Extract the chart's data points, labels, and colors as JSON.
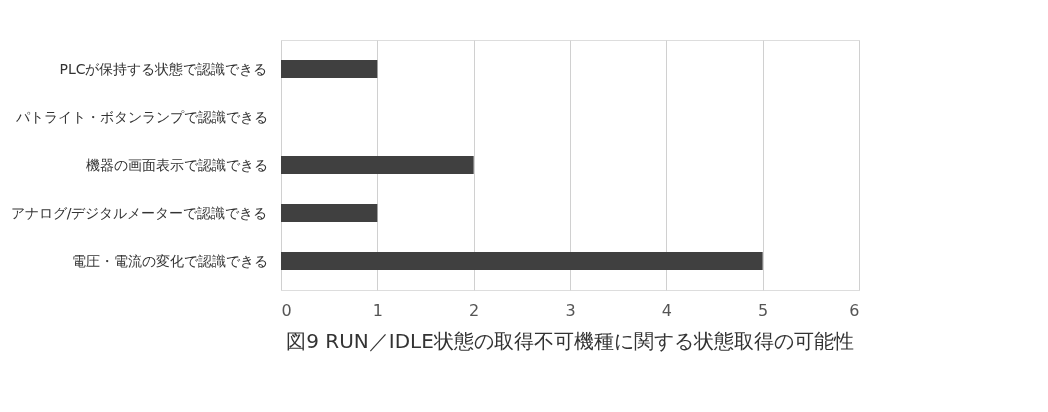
{
  "chart_data": {
    "type": "bar",
    "orientation": "horizontal",
    "title": "図9 RUN／IDLE状態の取得不可機種に関する状態取得の可能性",
    "categories": [
      "PLCが保持する状態で認識できる",
      "パトライト・ボタンランプで認識できる",
      "機器の画面表示で認識できる",
      "アナログ/デジタルメーターで認識できる",
      "電圧・電流の変化で認識できる"
    ],
    "values": [
      1,
      0,
      2,
      1,
      5
    ],
    "color": "#404040",
    "xlim": [
      0,
      6
    ],
    "xticks": [
      0,
      1,
      2,
      3,
      4,
      5,
      6
    ],
    "grid": "x"
  }
}
